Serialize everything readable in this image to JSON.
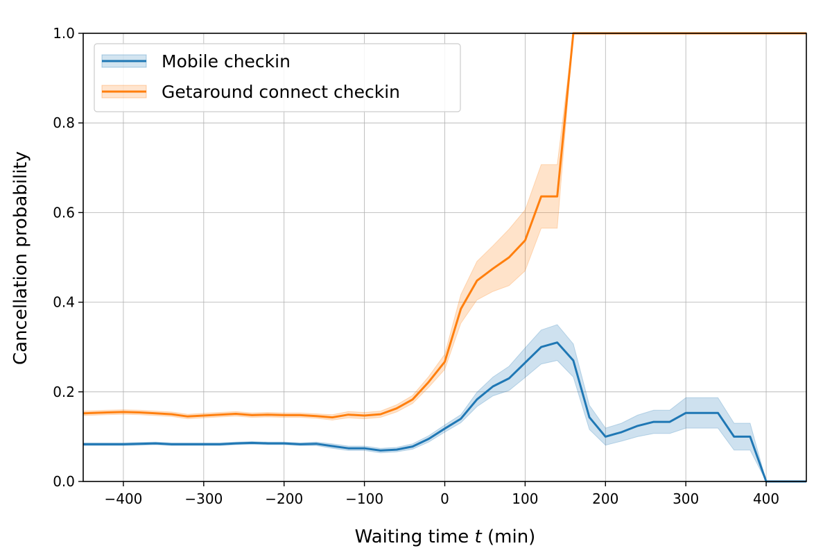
{
  "chart_data": {
    "type": "line",
    "xlabel_prefix": "Waiting time ",
    "xlabel_var": "t",
    "xlabel_suffix": " (min)",
    "ylabel": "Cancellation probability",
    "xlim": [
      -450,
      450
    ],
    "ylim": [
      0.0,
      1.0
    ],
    "xticks": [
      -400,
      -300,
      -200,
      -100,
      0,
      100,
      200,
      300,
      400
    ],
    "xtick_labels": [
      "−400",
      "−300",
      "−200",
      "−100",
      "0",
      "100",
      "200",
      "300",
      "400"
    ],
    "yticks": [
      0.0,
      0.2,
      0.4,
      0.6,
      0.8,
      1.0
    ],
    "ytick_labels": [
      "0.0",
      "0.2",
      "0.4",
      "0.6",
      "0.8",
      "1.0"
    ],
    "grid": true,
    "legend_position": "top-left",
    "x": [
      -450,
      -420,
      -400,
      -380,
      -360,
      -340,
      -320,
      -300,
      -280,
      -260,
      -240,
      -220,
      -200,
      -180,
      -160,
      -140,
      -120,
      -100,
      -80,
      -60,
      -40,
      -20,
      0,
      20,
      40,
      60,
      80,
      100,
      120,
      140,
      160,
      180,
      200,
      220,
      240,
      260,
      280,
      300,
      320,
      340,
      360,
      380,
      400,
      420,
      450
    ],
    "series": [
      {
        "name": "Mobile checkin",
        "color": "#1f77b4",
        "values": [
          0.083,
          0.083,
          0.083,
          0.084,
          0.085,
          0.083,
          0.083,
          0.083,
          0.083,
          0.085,
          0.086,
          0.085,
          0.085,
          0.083,
          0.084,
          0.079,
          0.074,
          0.074,
          0.069,
          0.071,
          0.078,
          0.095,
          0.118,
          0.14,
          0.183,
          0.212,
          0.23,
          0.265,
          0.3,
          0.31,
          0.27,
          0.143,
          0.1,
          0.11,
          0.124,
          0.133,
          0.133,
          0.153,
          0.153,
          0.153,
          0.1,
          0.1,
          0.0,
          0.0,
          0.0
        ],
        "lower": [
          0.08,
          0.08,
          0.08,
          0.081,
          0.082,
          0.08,
          0.08,
          0.08,
          0.08,
          0.082,
          0.083,
          0.082,
          0.082,
          0.08,
          0.08,
          0.074,
          0.069,
          0.069,
          0.064,
          0.066,
          0.072,
          0.088,
          0.11,
          0.131,
          0.167,
          0.191,
          0.203,
          0.232,
          0.262,
          0.27,
          0.233,
          0.116,
          0.081,
          0.09,
          0.1,
          0.107,
          0.107,
          0.119,
          0.119,
          0.119,
          0.07,
          0.07,
          0.0,
          0.0,
          0.0
        ],
        "upper": [
          0.086,
          0.086,
          0.086,
          0.087,
          0.088,
          0.086,
          0.086,
          0.086,
          0.086,
          0.088,
          0.089,
          0.088,
          0.088,
          0.086,
          0.088,
          0.084,
          0.079,
          0.079,
          0.074,
          0.076,
          0.084,
          0.102,
          0.126,
          0.149,
          0.199,
          0.233,
          0.257,
          0.298,
          0.338,
          0.35,
          0.307,
          0.17,
          0.119,
          0.13,
          0.148,
          0.159,
          0.159,
          0.187,
          0.187,
          0.187,
          0.13,
          0.13,
          0.0,
          0.0,
          0.0
        ]
      },
      {
        "name": "Getaround connect checkin",
        "color": "#ff7f0e",
        "values": [
          0.152,
          0.154,
          0.155,
          0.154,
          0.152,
          0.15,
          0.145,
          0.147,
          0.149,
          0.151,
          0.148,
          0.149,
          0.148,
          0.148,
          0.146,
          0.143,
          0.149,
          0.147,
          0.15,
          0.163,
          0.183,
          0.222,
          0.267,
          0.385,
          0.448,
          0.475,
          0.5,
          0.538,
          0.636,
          0.636,
          1.0,
          1.0,
          1.0,
          1.0,
          1.0,
          1.0,
          1.0,
          1.0,
          1.0,
          1.0,
          1.0,
          1.0,
          1.0,
          1.0,
          1.0
        ],
        "lower": [
          0.147,
          0.149,
          0.15,
          0.149,
          0.147,
          0.145,
          0.14,
          0.142,
          0.144,
          0.146,
          0.143,
          0.144,
          0.143,
          0.143,
          0.141,
          0.137,
          0.142,
          0.14,
          0.143,
          0.155,
          0.174,
          0.21,
          0.25,
          0.353,
          0.405,
          0.424,
          0.437,
          0.47,
          0.565,
          0.565,
          1.0,
          1.0,
          1.0,
          1.0,
          1.0,
          1.0,
          1.0,
          1.0,
          1.0,
          1.0,
          1.0,
          1.0,
          1.0,
          1.0,
          1.0
        ],
        "upper": [
          0.157,
          0.159,
          0.16,
          0.159,
          0.157,
          0.155,
          0.15,
          0.152,
          0.154,
          0.156,
          0.153,
          0.154,
          0.153,
          0.153,
          0.151,
          0.149,
          0.156,
          0.154,
          0.157,
          0.171,
          0.192,
          0.234,
          0.284,
          0.417,
          0.491,
          0.526,
          0.563,
          0.606,
          0.707,
          0.707,
          1.0,
          1.0,
          1.0,
          1.0,
          1.0,
          1.0,
          1.0,
          1.0,
          1.0,
          1.0,
          1.0,
          1.0,
          1.0,
          1.0,
          1.0
        ]
      }
    ]
  }
}
